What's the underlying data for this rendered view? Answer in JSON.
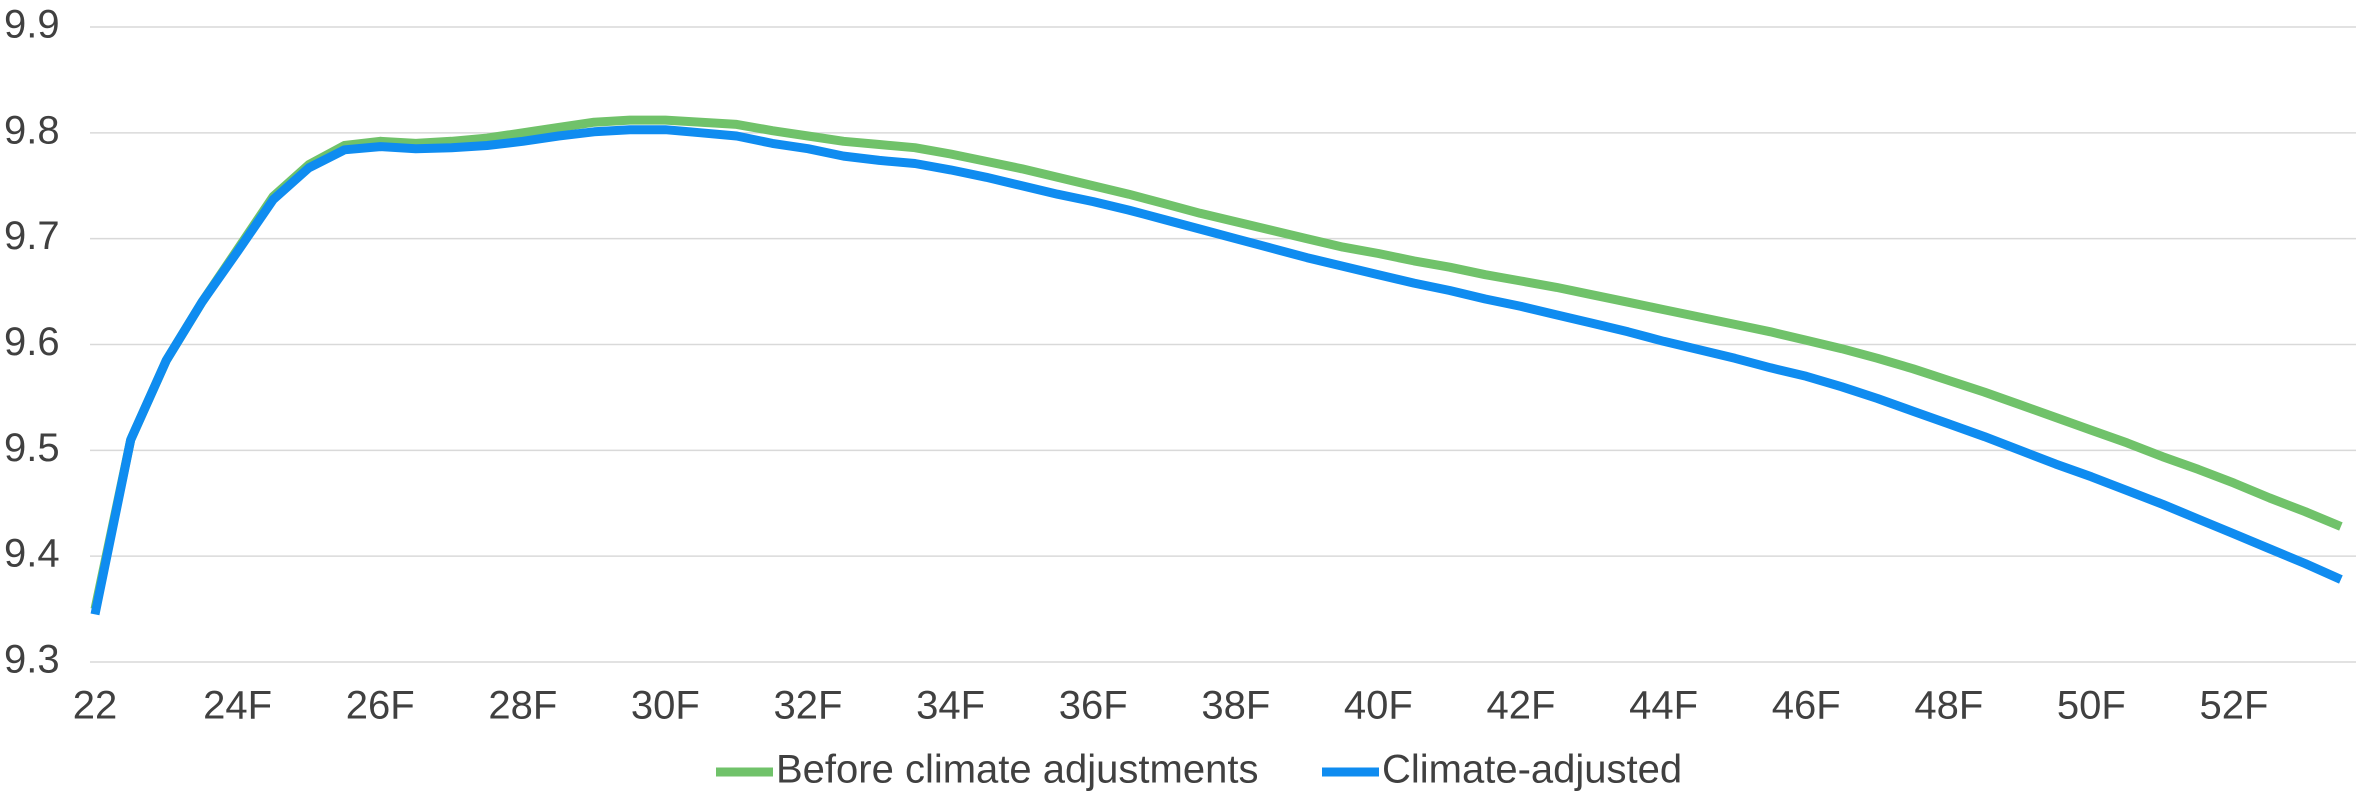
{
  "chart_data": {
    "type": "line",
    "categories": [
      "22",
      null,
      null,
      null,
      "24F",
      null,
      null,
      null,
      "26F",
      null,
      null,
      null,
      "28F",
      null,
      null,
      null,
      "30F",
      null,
      null,
      null,
      "32F",
      null,
      null,
      null,
      "34F",
      null,
      null,
      null,
      "36F",
      null,
      null,
      null,
      "38F",
      null,
      null,
      null,
      "40F",
      null,
      null,
      null,
      "42F",
      null,
      null,
      null,
      "44F",
      null,
      null,
      null,
      "46F",
      null,
      null,
      null,
      "48F",
      null,
      null,
      null,
      "50F",
      null,
      null,
      null,
      "52F",
      null,
      null,
      null
    ],
    "series": [
      {
        "name": "Before climate adjustments",
        "color": "#70c26a",
        "values": [
          9.35,
          9.51,
          9.585,
          9.64,
          9.69,
          9.74,
          9.77,
          9.788,
          9.792,
          9.79,
          9.792,
          9.795,
          9.8,
          9.805,
          9.81,
          9.812,
          9.812,
          9.81,
          9.808,
          9.802,
          9.797,
          9.792,
          9.789,
          9.786,
          9.78,
          9.773,
          9.766,
          9.758,
          9.75,
          9.742,
          9.733,
          9.724,
          9.716,
          9.708,
          9.7,
          9.692,
          9.686,
          9.679,
          9.673,
          9.666,
          9.66,
          9.654,
          9.647,
          9.64,
          9.633,
          9.626,
          9.619,
          9.612,
          9.604,
          9.596,
          9.587,
          9.577,
          9.566,
          9.555,
          9.543,
          9.531,
          9.519,
          9.507,
          9.494,
          9.482,
          9.469,
          9.455,
          9.442,
          9.428
        ]
      },
      {
        "name": "Climate-adjusted",
        "color": "#0f8cf0",
        "values": [
          9.345,
          9.51,
          9.585,
          9.64,
          9.688,
          9.737,
          9.767,
          9.784,
          9.787,
          9.785,
          9.786,
          9.788,
          9.792,
          9.797,
          9.801,
          9.803,
          9.803,
          9.8,
          9.797,
          9.79,
          9.785,
          9.778,
          9.774,
          9.771,
          9.765,
          9.758,
          9.75,
          9.742,
          9.735,
          9.727,
          9.718,
          9.709,
          9.7,
          9.691,
          9.682,
          9.674,
          9.666,
          9.658,
          9.651,
          9.643,
          9.636,
          9.628,
          9.62,
          9.612,
          9.603,
          9.595,
          9.587,
          9.578,
          9.57,
          9.56,
          9.549,
          9.537,
          9.525,
          9.513,
          9.5,
          9.487,
          9.475,
          9.462,
          9.449,
          9.435,
          9.421,
          9.407,
          9.393,
          9.378
        ]
      }
    ],
    "ylim": [
      9.3,
      9.9
    ],
    "yticks": [
      9.3,
      9.4,
      9.5,
      9.6,
      9.7,
      9.8,
      9.9
    ],
    "grid": true,
    "legend": "bottom"
  }
}
